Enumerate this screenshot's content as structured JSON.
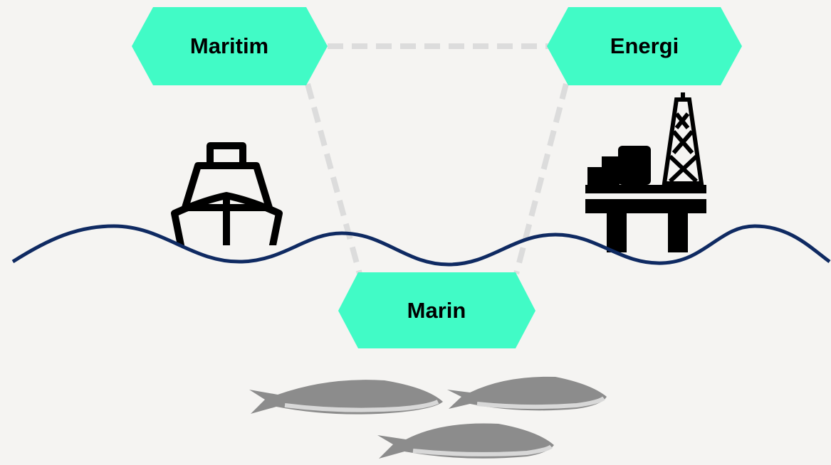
{
  "nodes": [
    {
      "label": "Maritim"
    },
    {
      "label": "Energi"
    },
    {
      "label": "Marin"
    }
  ]
}
